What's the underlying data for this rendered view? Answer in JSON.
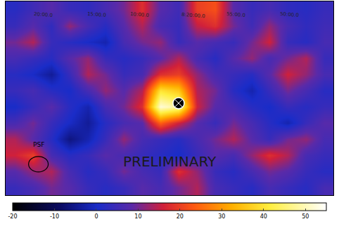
{
  "chart_data": {
    "type": "heatmap",
    "tick_labels": false,
    "cells": [
      [
        2,
        5,
        8,
        4,
        3,
        6,
        10,
        18,
        8,
        5,
        20,
        22,
        8,
        4,
        6,
        3,
        2,
        4
      ],
      [
        4,
        8,
        3,
        12,
        6,
        2,
        8,
        14,
        6,
        4,
        15,
        18,
        10,
        5,
        12,
        6,
        3,
        5
      ],
      [
        10,
        14,
        4,
        2,
        0,
        -2,
        6,
        10,
        12,
        4,
        8,
        6,
        4,
        10,
        16,
        4,
        2,
        6
      ],
      [
        6,
        4,
        2,
        8,
        12,
        4,
        2,
        4,
        8,
        14,
        6,
        2,
        8,
        12,
        6,
        10,
        14,
        4
      ],
      [
        2,
        0,
        -4,
        4,
        14,
        10,
        4,
        6,
        18,
        20,
        12,
        6,
        4,
        2,
        8,
        16,
        12,
        6
      ],
      [
        4,
        6,
        2,
        0,
        6,
        12,
        8,
        14,
        40,
        36,
        14,
        10,
        2,
        -2,
        4,
        10,
        6,
        2
      ],
      [
        0,
        4,
        8,
        2,
        -2,
        6,
        10,
        18,
        52,
        48,
        16,
        8,
        6,
        2,
        0,
        4,
        2,
        4
      ],
      [
        6,
        10,
        4,
        0,
        -4,
        2,
        6,
        8,
        24,
        16,
        8,
        4,
        10,
        6,
        2,
        -2,
        4,
        8
      ],
      [
        14,
        8,
        2,
        -6,
        -2,
        4,
        12,
        6,
        4,
        2,
        6,
        10,
        14,
        8,
        4,
        10,
        12,
        6
      ],
      [
        16,
        20,
        6,
        2,
        4,
        8,
        6,
        4,
        2,
        0,
        4,
        8,
        6,
        12,
        18,
        14,
        6,
        4
      ],
      [
        8,
        12,
        14,
        6,
        2,
        4,
        10,
        6,
        4,
        18,
        12,
        4,
        2,
        6,
        10,
        8,
        4,
        2
      ],
      [
        4,
        6,
        10,
        8,
        4,
        2,
        4,
        8,
        6,
        10,
        14,
        6,
        4,
        2,
        6,
        4,
        2,
        6
      ]
    ],
    "colorbar_range": [
      -20,
      55
    ],
    "colorbar_ticks": [
      -20,
      -10,
      0,
      10,
      20,
      30,
      40,
      50
    ],
    "markers": [
      {
        "x": 9.0,
        "y": 5.8,
        "marker": "circle",
        "color": "#000000"
      }
    ],
    "annotations": [
      "PRELIMINARY",
      "PSF"
    ],
    "grid_labels": [
      "20:00.0",
      "15:00.0",
      "10:00.0",
      "8:20:00.0",
      "55:00.0",
      "50:00.0"
    ]
  }
}
